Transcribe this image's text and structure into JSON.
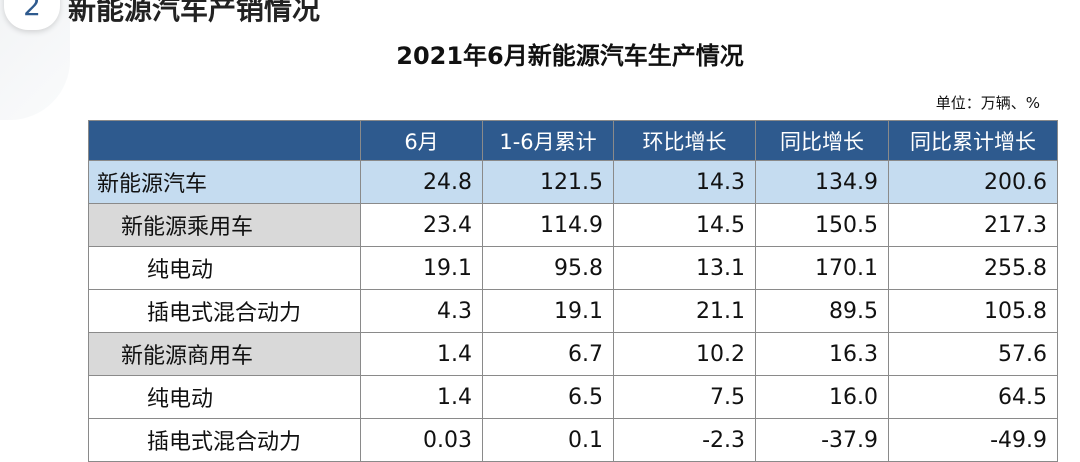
{
  "header": {
    "number": "2",
    "title": "新能源汽车产销情况"
  },
  "table": {
    "title": "2021年6月新能源汽车生产情况",
    "unit": "单位：万辆、%",
    "columns": [
      "",
      "6月",
      "1-6月累计",
      "环比增长",
      "同比增长",
      "同比累计增长"
    ],
    "rows": [
      [
        "新能源汽车",
        "24.8",
        "121.5",
        "14.3",
        "134.9",
        "200.6"
      ],
      [
        "新能源乘用车",
        "23.4",
        "114.9",
        "14.5",
        "150.5",
        "217.3"
      ],
      [
        "纯电动",
        "19.1",
        "95.8",
        "13.1",
        "170.1",
        "255.8"
      ],
      [
        "插电式混合动力",
        "4.3",
        "19.1",
        "21.1",
        "89.5",
        "105.8"
      ],
      [
        "新能源商用车",
        "1.4",
        "6.7",
        "10.2",
        "16.3",
        "57.6"
      ],
      [
        "纯电动",
        "1.4",
        "6.5",
        "7.5",
        "16.0",
        "64.5"
      ],
      [
        "插电式混合动力",
        "0.03",
        "0.1",
        "-2.3",
        "-37.9",
        "-49.9"
      ]
    ]
  }
}
